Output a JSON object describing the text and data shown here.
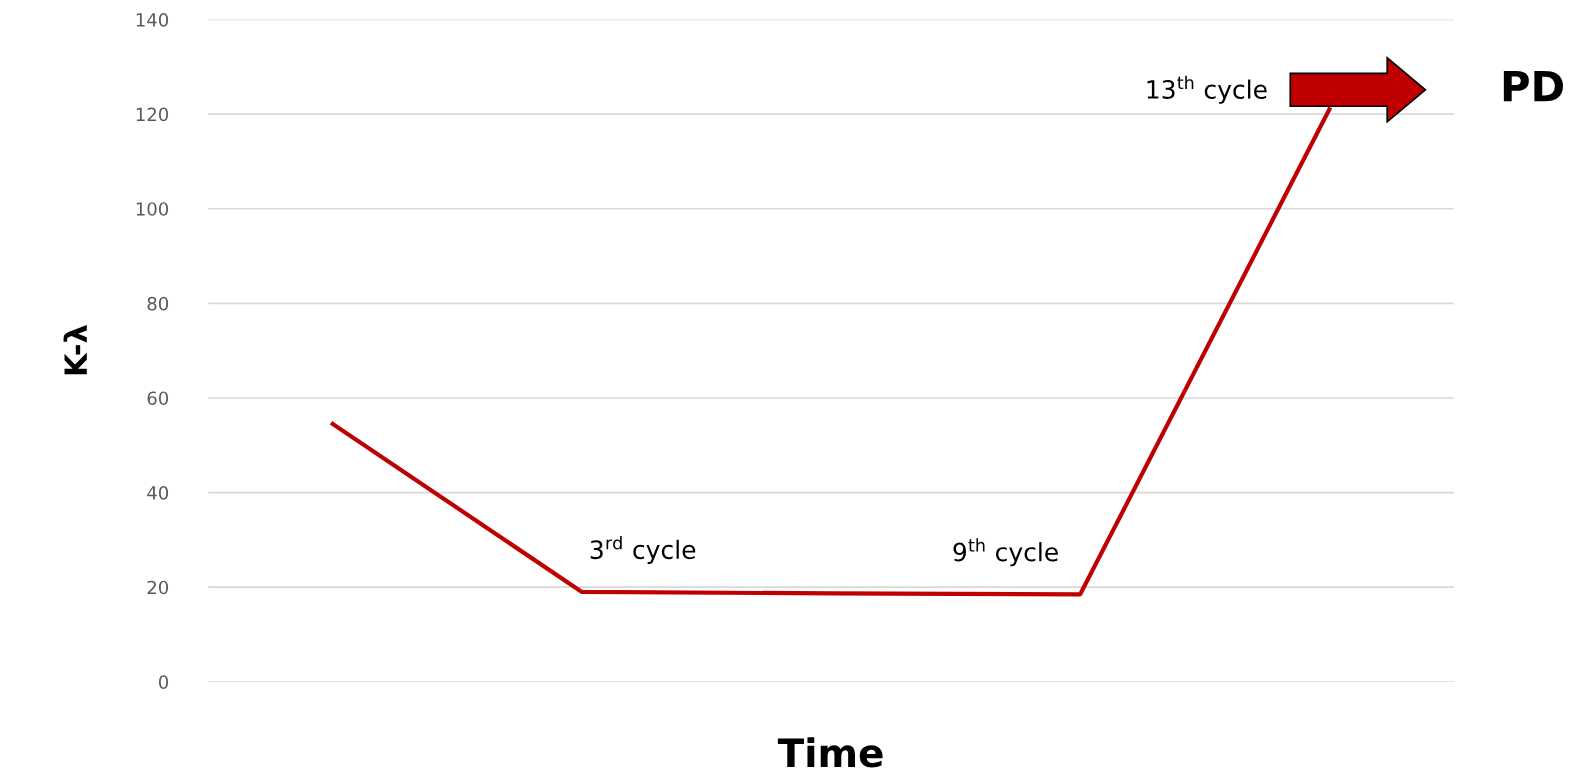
{
  "chart_data": {
    "type": "line",
    "xlabel": "Time",
    "ylabel": "K-λ",
    "categories": [
      null,
      null,
      null,
      null,
      null
    ],
    "series": [
      {
        "color": "#c00000",
        "values": [
          54.5,
          19,
          18.7,
          18.5,
          121
        ]
      }
    ],
    "ylim": [
      0,
      140
    ],
    "yticks": [
      0,
      20,
      40,
      60,
      80,
      100,
      120,
      140
    ],
    "grid": "y",
    "tick_labels": "y",
    "marker": "none",
    "line_style": "solid",
    "annotations": [
      {
        "text": "3$^{rd}$ cycle",
        "y": 19
      },
      {
        "text": "9$^{th}$ cycle",
        "y": 18.5
      },
      "13$^{th}$ cycle",
      "PD"
    ]
  }
}
